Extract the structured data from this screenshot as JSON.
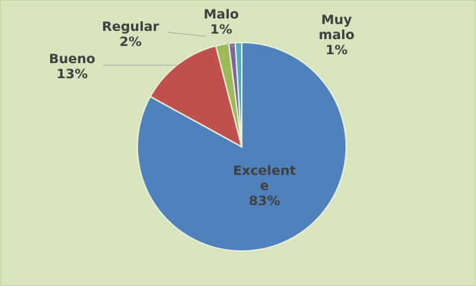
{
  "chart_data": {
    "type": "pie",
    "categories": [
      "Excelente",
      "Bueno",
      "Regular",
      "Malo",
      "Muy malo"
    ],
    "values": [
      83,
      13,
      2,
      1,
      1
    ],
    "value_labels": [
      "83%",
      "13%",
      "2%",
      "1%",
      "1%"
    ],
    "colors": [
      "#4f81bd",
      "#c0504d",
      "#9bbb59",
      "#8064a2",
      "#4bacc6"
    ]
  }
}
